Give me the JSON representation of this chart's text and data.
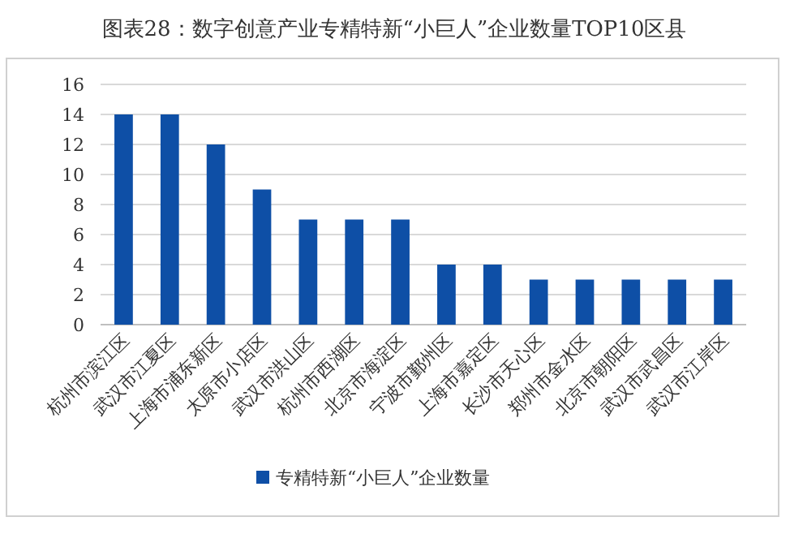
{
  "chart_data": {
    "type": "bar",
    "title": "图表28：数字创意产业专精特新“小巨人”企业数量TOP10区县",
    "categories": [
      "杭州市滨江区",
      "武汉市江夏区",
      "上海市浦东新区",
      "太原市小店区",
      "武汉市洪山区",
      "杭州市西湖区",
      "北京市海淀区",
      "宁波市鄞州区",
      "上海市嘉定区",
      "长沙市天心区",
      "郑州市金水区",
      "北京市朝阳区",
      "武汉市武昌区",
      "武汉市江岸区"
    ],
    "series": [
      {
        "name": "专精特新“小巨人”企业数量",
        "color": "#0e4fa6",
        "values": [
          14,
          14,
          12,
          9,
          7,
          7,
          7,
          4,
          4,
          3,
          3,
          3,
          3,
          3
        ]
      }
    ],
    "ylim": [
      0,
      16
    ],
    "yticks": [
      0,
      2,
      4,
      6,
      8,
      10,
      12,
      14,
      16
    ],
    "grid": "y",
    "legend": "bottom"
  }
}
